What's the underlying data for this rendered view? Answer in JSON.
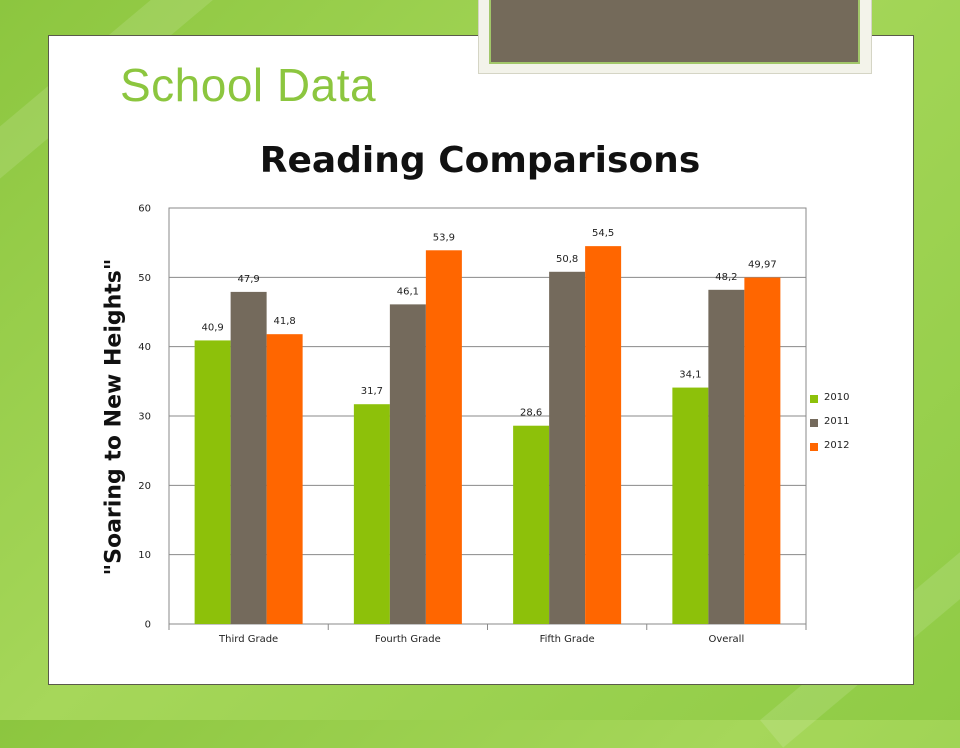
{
  "slide": {
    "title": "School Data"
  },
  "colors": {
    "background_green": "#8cc63f",
    "frame_brown": "#746a5a",
    "title_green": "#8cc63f"
  },
  "chart_data": {
    "type": "bar",
    "title": "Reading Comparisons",
    "ylabel": "\"Soaring to New Heights\"",
    "xlabel": "",
    "categories": [
      "Third Grade",
      "Fourth Grade",
      "Fifth Grade",
      "Overall"
    ],
    "series": [
      {
        "name": "2010",
        "color": "#8dc10a",
        "values": [
          40.9,
          31.7,
          28.6,
          34.1
        ],
        "labels": [
          "40,9",
          "31,7",
          "28,6",
          "34,1"
        ]
      },
      {
        "name": "2011",
        "color": "#746a5c",
        "values": [
          47.9,
          46.1,
          50.8,
          48.2
        ],
        "labels": [
          "47,9",
          "46,1",
          "50,8",
          "48,2"
        ]
      },
      {
        "name": "2012",
        "color": "#ff6600",
        "values": [
          41.8,
          53.9,
          54.5,
          49.97
        ],
        "labels": [
          "41,8",
          "53,9",
          "54,5",
          "49,97"
        ]
      }
    ],
    "ylim": [
      0,
      60
    ],
    "yticks": [
      0,
      10,
      20,
      30,
      40,
      50,
      60
    ],
    "grid": true,
    "legend_position": "right"
  }
}
